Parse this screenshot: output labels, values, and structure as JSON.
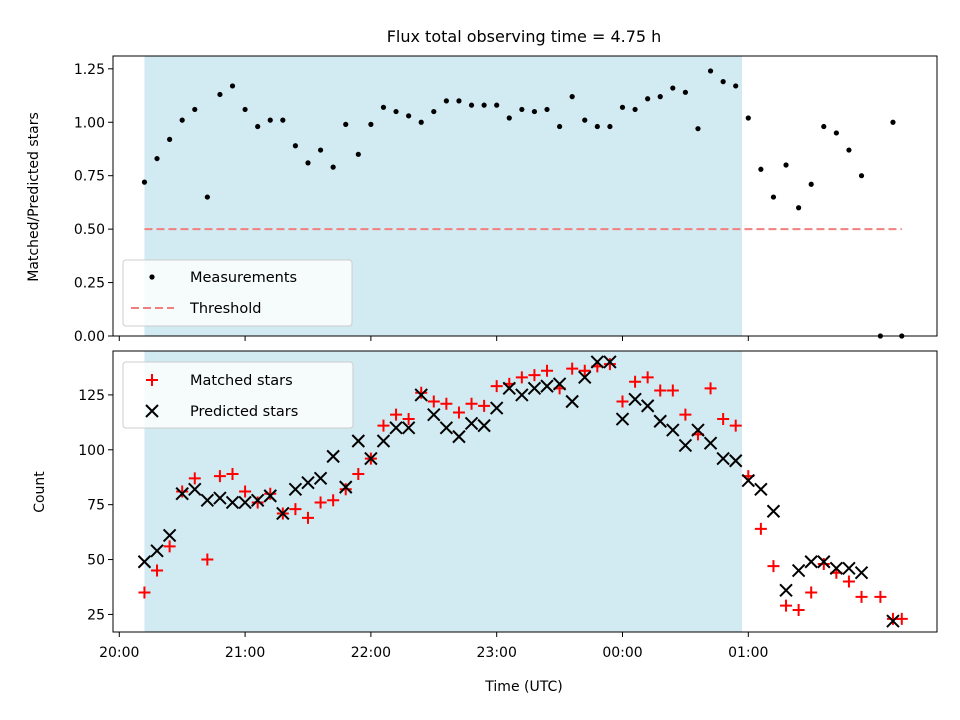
{
  "chart_data": [
    {
      "type": "scatter",
      "title": "Flux total observing time = 4.75 h",
      "xlabel": "",
      "ylabel": "Matched/Predicted stars",
      "ylim": [
        0,
        1.31
      ],
      "yticks": [
        "0.00",
        "0.25",
        "0.50",
        "0.75",
        "1.00",
        "1.25"
      ],
      "x_unit": "hours since 20:00 UTC",
      "shaded_span": [
        0.2,
        4.95
      ],
      "legend_position": "lower-left",
      "series": [
        {
          "name": "Measurements",
          "marker": "dot",
          "color": "#000000",
          "points": [
            [
              0.2,
              0.72
            ],
            [
              0.3,
              0.83
            ],
            [
              0.4,
              0.92
            ],
            [
              0.5,
              1.01
            ],
            [
              0.6,
              1.06
            ],
            [
              0.7,
              0.65
            ],
            [
              0.8,
              1.13
            ],
            [
              0.9,
              1.17
            ],
            [
              1.0,
              1.06
            ],
            [
              1.1,
              0.98
            ],
            [
              1.2,
              1.01
            ],
            [
              1.3,
              1.01
            ],
            [
              1.4,
              0.89
            ],
            [
              1.5,
              0.81
            ],
            [
              1.6,
              0.87
            ],
            [
              1.7,
              0.79
            ],
            [
              1.8,
              0.99
            ],
            [
              1.9,
              0.85
            ],
            [
              2.0,
              0.99
            ],
            [
              2.1,
              1.07
            ],
            [
              2.2,
              1.05
            ],
            [
              2.3,
              1.03
            ],
            [
              2.4,
              1.0
            ],
            [
              2.5,
              1.05
            ],
            [
              2.6,
              1.1
            ],
            [
              2.7,
              1.1
            ],
            [
              2.8,
              1.08
            ],
            [
              2.9,
              1.08
            ],
            [
              3.0,
              1.08
            ],
            [
              3.1,
              1.02
            ],
            [
              3.2,
              1.06
            ],
            [
              3.3,
              1.05
            ],
            [
              3.4,
              1.06
            ],
            [
              3.5,
              0.98
            ],
            [
              3.6,
              1.12
            ],
            [
              3.7,
              1.01
            ],
            [
              3.8,
              0.98
            ],
            [
              3.9,
              0.98
            ],
            [
              4.0,
              1.07
            ],
            [
              4.1,
              1.06
            ],
            [
              4.2,
              1.11
            ],
            [
              4.3,
              1.12
            ],
            [
              4.4,
              1.16
            ],
            [
              4.5,
              1.14
            ],
            [
              4.6,
              0.97
            ],
            [
              4.7,
              1.24
            ],
            [
              4.8,
              1.19
            ],
            [
              4.9,
              1.17
            ],
            [
              5.0,
              1.02
            ],
            [
              5.1,
              0.78
            ],
            [
              5.2,
              0.65
            ],
            [
              5.3,
              0.8
            ],
            [
              5.4,
              0.6
            ],
            [
              5.5,
              0.71
            ],
            [
              5.6,
              0.98
            ],
            [
              5.7,
              0.95
            ],
            [
              5.8,
              0.87
            ],
            [
              5.9,
              0.75
            ],
            [
              6.05,
              0.0
            ],
            [
              6.15,
              1.0
            ],
            [
              6.22,
              0.0
            ]
          ]
        },
        {
          "name": "Threshold",
          "marker": "dashed-line",
          "color": "#f08080",
          "points": [
            [
              0.2,
              0.5
            ],
            [
              6.22,
              0.5
            ]
          ]
        }
      ]
    },
    {
      "type": "scatter",
      "title": "",
      "xlabel": "Time (UTC)",
      "ylabel": "Count",
      "ylim": [
        17,
        145
      ],
      "yticks": [
        "25",
        "50",
        "75",
        "100",
        "125"
      ],
      "xticks": [
        "20:00",
        "21:00",
        "22:00",
        "23:00",
        "00:00",
        "01:00"
      ],
      "x_unit": "hours since 20:00 UTC",
      "shaded_span": [
        0.2,
        4.95
      ],
      "legend_position": "top-left",
      "series": [
        {
          "name": "Matched stars",
          "marker": "plus",
          "color": "#ff0000",
          "points": [
            [
              0.2,
              35
            ],
            [
              0.3,
              45
            ],
            [
              0.4,
              56
            ],
            [
              0.5,
              81
            ],
            [
              0.6,
              87
            ],
            [
              0.7,
              50
            ],
            [
              0.8,
              88
            ],
            [
              0.9,
              89
            ],
            [
              1.0,
              81
            ],
            [
              1.1,
              76
            ],
            [
              1.2,
              80
            ],
            [
              1.3,
              71
            ],
            [
              1.4,
              73
            ],
            [
              1.5,
              69
            ],
            [
              1.6,
              76
            ],
            [
              1.7,
              77
            ],
            [
              1.8,
              82
            ],
            [
              1.9,
              89
            ],
            [
              2.0,
              96
            ],
            [
              2.1,
              111
            ],
            [
              2.2,
              116
            ],
            [
              2.3,
              114
            ],
            [
              2.4,
              126
            ],
            [
              2.5,
              122
            ],
            [
              2.6,
              121
            ],
            [
              2.7,
              117
            ],
            [
              2.8,
              121
            ],
            [
              2.9,
              120
            ],
            [
              3.0,
              129
            ],
            [
              3.1,
              130
            ],
            [
              3.2,
              133
            ],
            [
              3.3,
              134
            ],
            [
              3.4,
              136
            ],
            [
              3.5,
              128
            ],
            [
              3.6,
              137
            ],
            [
              3.7,
              136
            ],
            [
              3.8,
              138
            ],
            [
              3.9,
              139
            ],
            [
              4.0,
              122
            ],
            [
              4.1,
              131
            ],
            [
              4.2,
              133
            ],
            [
              4.3,
              127
            ],
            [
              4.4,
              127
            ],
            [
              4.5,
              116
            ],
            [
              4.6,
              107
            ],
            [
              4.7,
              128
            ],
            [
              4.8,
              114
            ],
            [
              4.9,
              111
            ],
            [
              5.0,
              88
            ],
            [
              5.1,
              64
            ],
            [
              5.2,
              47
            ],
            [
              5.3,
              29
            ],
            [
              5.4,
              27
            ],
            [
              5.5,
              35
            ],
            [
              5.6,
              48
            ],
            [
              5.7,
              44
            ],
            [
              5.8,
              40
            ],
            [
              5.9,
              33
            ],
            [
              6.05,
              33
            ],
            [
              6.15,
              23
            ],
            [
              6.22,
              23
            ]
          ]
        },
        {
          "name": "Predicted stars",
          "marker": "x",
          "color": "#000000",
          "points": [
            [
              0.2,
              49
            ],
            [
              0.3,
              54
            ],
            [
              0.4,
              61
            ],
            [
              0.5,
              80
            ],
            [
              0.6,
              82
            ],
            [
              0.7,
              77
            ],
            [
              0.8,
              78
            ],
            [
              0.9,
              76
            ],
            [
              1.0,
              76
            ],
            [
              1.1,
              77
            ],
            [
              1.2,
              79
            ],
            [
              1.3,
              71
            ],
            [
              1.4,
              82
            ],
            [
              1.5,
              85
            ],
            [
              1.6,
              87
            ],
            [
              1.7,
              97
            ],
            [
              1.8,
              83
            ],
            [
              1.9,
              104
            ],
            [
              2.0,
              96
            ],
            [
              2.1,
              104
            ],
            [
              2.2,
              110
            ],
            [
              2.3,
              110
            ],
            [
              2.4,
              125
            ],
            [
              2.5,
              116
            ],
            [
              2.6,
              110
            ],
            [
              2.7,
              106
            ],
            [
              2.8,
              112
            ],
            [
              2.9,
              111
            ],
            [
              3.0,
              119
            ],
            [
              3.1,
              128
            ],
            [
              3.2,
              125
            ],
            [
              3.3,
              128
            ],
            [
              3.4,
              129
            ],
            [
              3.5,
              130
            ],
            [
              3.6,
              122
            ],
            [
              3.7,
              133
            ],
            [
              3.8,
              140
            ],
            [
              3.9,
              140
            ],
            [
              4.0,
              114
            ],
            [
              4.1,
              123
            ],
            [
              4.2,
              120
            ],
            [
              4.3,
              113
            ],
            [
              4.4,
              109
            ],
            [
              4.5,
              102
            ],
            [
              4.6,
              109
            ],
            [
              4.7,
              103
            ],
            [
              4.8,
              96
            ],
            [
              4.9,
              95
            ],
            [
              5.0,
              86
            ],
            [
              5.1,
              82
            ],
            [
              5.2,
              72
            ],
            [
              5.3,
              36
            ],
            [
              5.4,
              45
            ],
            [
              5.5,
              49
            ],
            [
              5.6,
              49
            ],
            [
              5.7,
              46
            ],
            [
              5.8,
              46
            ],
            [
              5.9,
              44
            ],
            [
              6.15,
              22
            ]
          ]
        }
      ]
    }
  ]
}
